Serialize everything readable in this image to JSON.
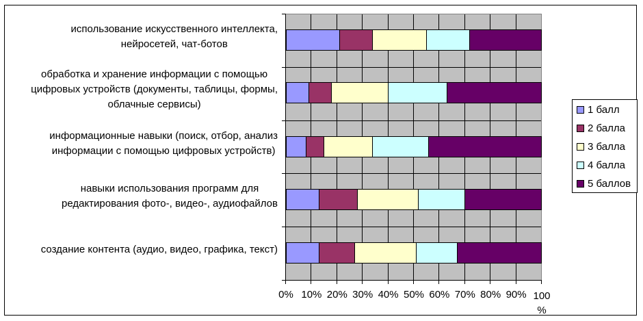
{
  "chart_data": {
    "type": "bar",
    "orientation": "horizontal",
    "stacked": "percent",
    "title": "",
    "xlabel": "",
    "ylabel": "",
    "xlim": [
      0,
      100
    ],
    "x_ticks": [
      "0%",
      "10%",
      "20%",
      "30%",
      "40%",
      "50%",
      "60%",
      "70%",
      "80%",
      "90%",
      "100%"
    ],
    "grid": true,
    "legend_position": "right",
    "categories": [
      "использование искусственного интеллекта, нейросетей, чат-ботов",
      "обработка и хранение информации с помощью цифровых устройств (документы, таблицы, формы, облачные сервисы)",
      "информационные навыки (поиск, отбор, анализ информации с помощью цифровых устройств)",
      "навыки использования программ для редактирования фото-, видео-, аудиофайлов",
      "создание контента (аудио, видео, графика, текст)"
    ],
    "series": [
      {
        "name": "1 балл",
        "color": "#9999ff",
        "values": [
          21,
          9,
          8,
          13,
          13
        ]
      },
      {
        "name": "2 балла",
        "color": "#993366",
        "values": [
          13,
          9,
          7,
          15,
          14
        ]
      },
      {
        "name": "3 балла",
        "color": "#ffffcc",
        "values": [
          21,
          22,
          19,
          24,
          24
        ]
      },
      {
        "name": "4 балла",
        "color": "#ccffff",
        "values": [
          17,
          23,
          22,
          18,
          16
        ]
      },
      {
        "name": "5 баллов",
        "color": "#660066",
        "values": [
          28,
          37,
          44,
          30,
          33
        ]
      }
    ]
  },
  "category_labels": [
    [
      "использование искусственного интеллекта,",
      "нейросетей, чат-ботов"
    ],
    [
      "обработка и хранение информации с помощью",
      "цифровых устройств (документы, таблицы, формы,",
      "облачные сервисы)"
    ],
    [
      "информационные навыки (поиск, отбор, анализ",
      "информации с помощью цифровых устройств)"
    ],
    [
      "навыки использования программ для",
      "редактирования фото-, видео-, аудиофайлов"
    ],
    [
      "создание контента (аудио, видео, графика, текст)"
    ]
  ],
  "x_tick_labels": [
    "0%",
    "10%",
    "20%",
    "30%",
    "40%",
    "50%",
    "60%",
    "70%",
    "80%",
    "90%"
  ],
  "x_tick_last": [
    "100",
    "%"
  ],
  "legend": [
    {
      "label": "1 балл",
      "color": "#9999ff"
    },
    {
      "label": "2 балла",
      "color": "#993366"
    },
    {
      "label": "3 балла",
      "color": "#ffffcc"
    },
    {
      "label": "4 балла",
      "color": "#ccffff"
    },
    {
      "label": "5 баллов",
      "color": "#660066"
    }
  ]
}
